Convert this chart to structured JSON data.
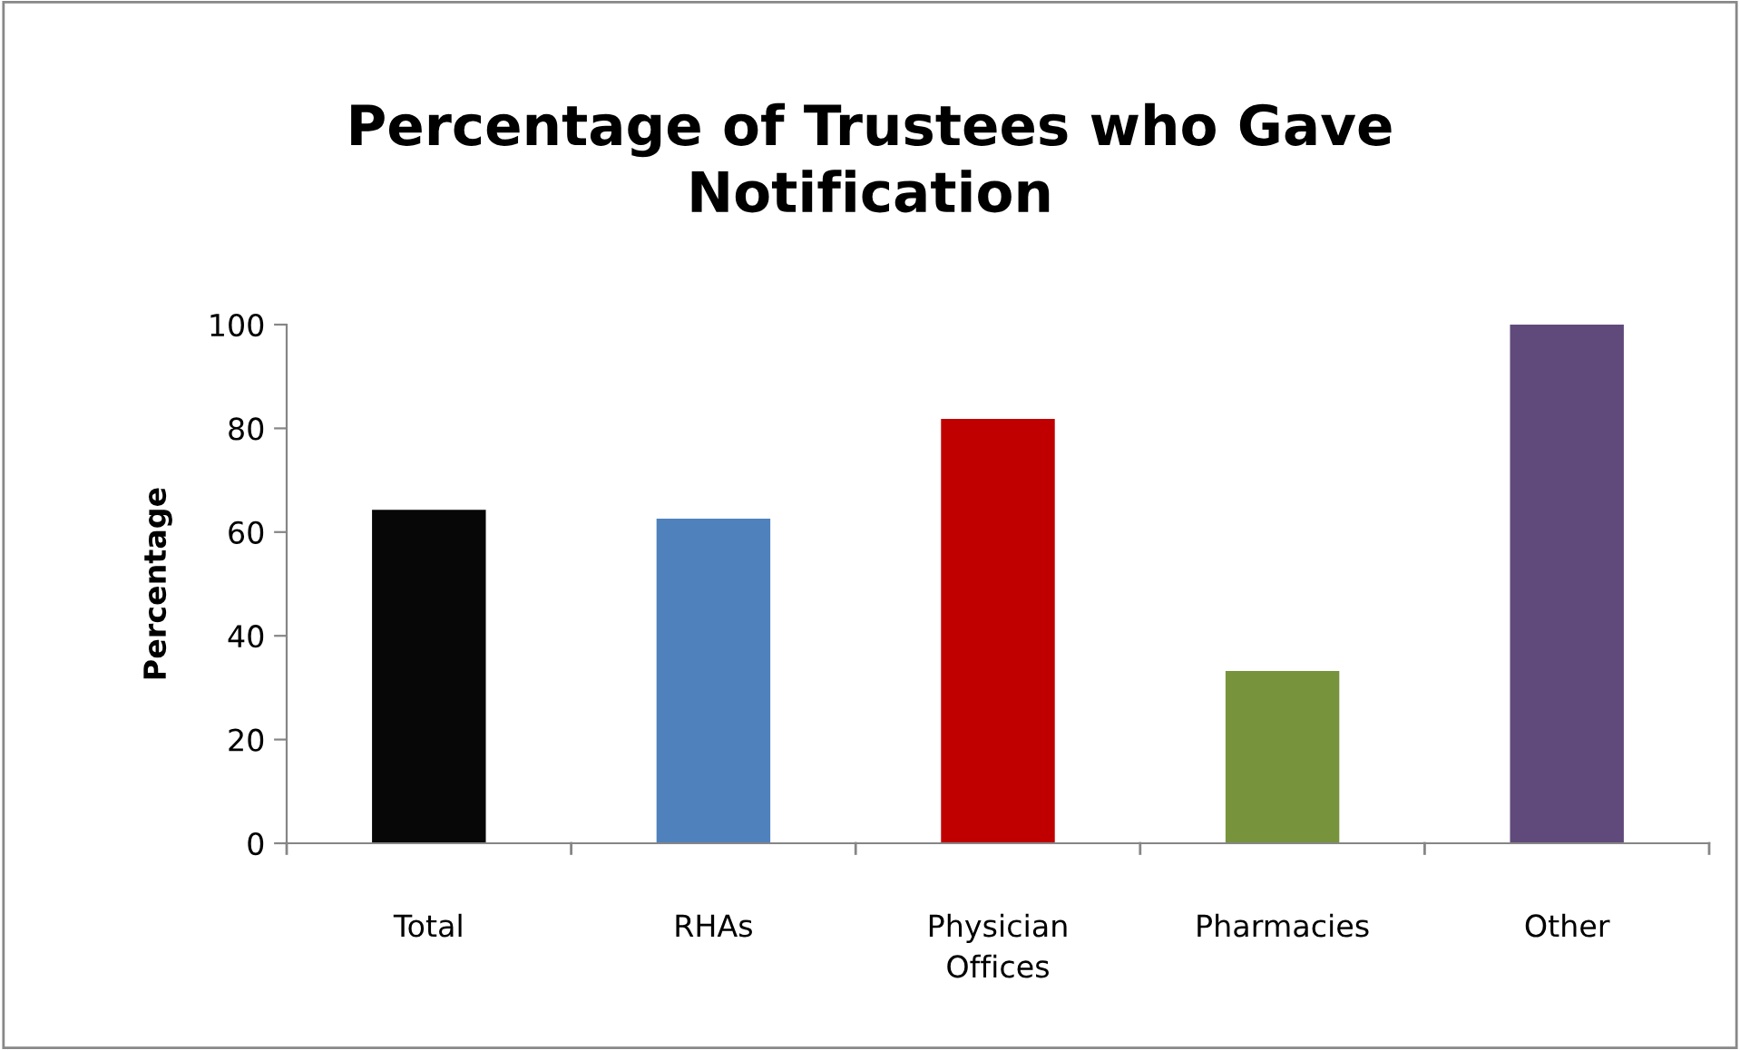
{
  "chart_data": {
    "type": "bar",
    "title": "Percentage of Trustees who Gave\nNotification",
    "ylabel": "Percentage",
    "categories": [
      "Total",
      "RHAs",
      "Physician\nOffices",
      "Pharmacies",
      "Other"
    ],
    "values": [
      64.3,
      62.6,
      81.8,
      33.2,
      100
    ],
    "colors": [
      "#070707",
      "#4f81bd",
      "#c00000",
      "#77933c",
      "#604a7b"
    ],
    "ylim": [
      0,
      100
    ],
    "yticks": [
      0,
      20,
      40,
      60,
      80,
      100
    ],
    "grid": false,
    "legend": false
  }
}
